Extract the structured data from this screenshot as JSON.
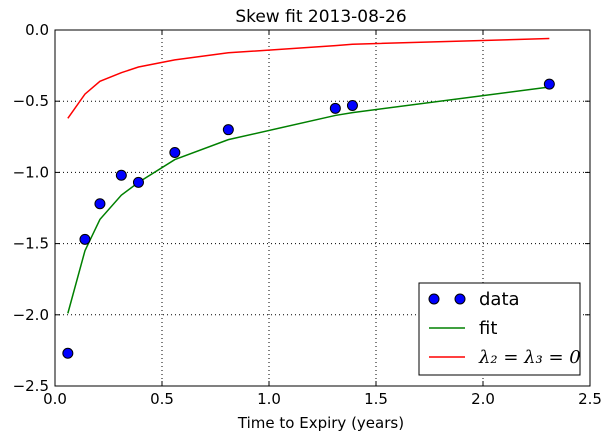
{
  "chart_data": {
    "type": "line",
    "title": "Skew fit 2013-08-26",
    "xlabel": "Time to Expiry (years)",
    "ylabel": "",
    "xlim": [
      0.0,
      2.5
    ],
    "ylim": [
      -2.5,
      0.0
    ],
    "xticks": [
      0.0,
      0.5,
      1.0,
      1.5,
      2.0,
      2.5
    ],
    "yticks": [
      0.0,
      -0.5,
      -1.0,
      -1.5,
      -2.0,
      -2.5
    ],
    "xtick_labels": [
      "0.0",
      "0.5",
      "1.0",
      "1.5",
      "2.0",
      "2.5"
    ],
    "ytick_labels": [
      "0.0",
      "−0.5",
      "−1.0",
      "−1.5",
      "−2.0",
      "−2.5"
    ],
    "grid": true,
    "legend_position": "lower-right",
    "series": [
      {
        "name": "data",
        "kind": "markers",
        "color": "#0000ff",
        "x": [
          0.06,
          0.14,
          0.21,
          0.31,
          0.39,
          0.56,
          0.81,
          1.31,
          1.39,
          2.31
        ],
        "y": [
          -2.27,
          -1.47,
          -1.22,
          -1.02,
          -1.07,
          -0.86,
          -0.7,
          -0.55,
          -0.53,
          -0.38
        ]
      },
      {
        "name": "fit",
        "kind": "line",
        "color": "#008000",
        "x": [
          0.06,
          0.14,
          0.21,
          0.31,
          0.39,
          0.56,
          0.81,
          1.31,
          1.39,
          2.31
        ],
        "y": [
          -1.99,
          -1.55,
          -1.33,
          -1.16,
          -1.07,
          -0.91,
          -0.77,
          -0.6,
          -0.58,
          -0.4
        ]
      },
      {
        "name": "λ₂ = λ₃ = 0",
        "kind": "line",
        "color": "#ff0000",
        "x": [
          0.06,
          0.14,
          0.21,
          0.31,
          0.39,
          0.56,
          0.81,
          1.31,
          1.39,
          2.31
        ],
        "y": [
          -0.62,
          -0.45,
          -0.36,
          -0.3,
          -0.26,
          -0.21,
          -0.16,
          -0.11,
          -0.1,
          -0.06
        ]
      }
    ]
  }
}
